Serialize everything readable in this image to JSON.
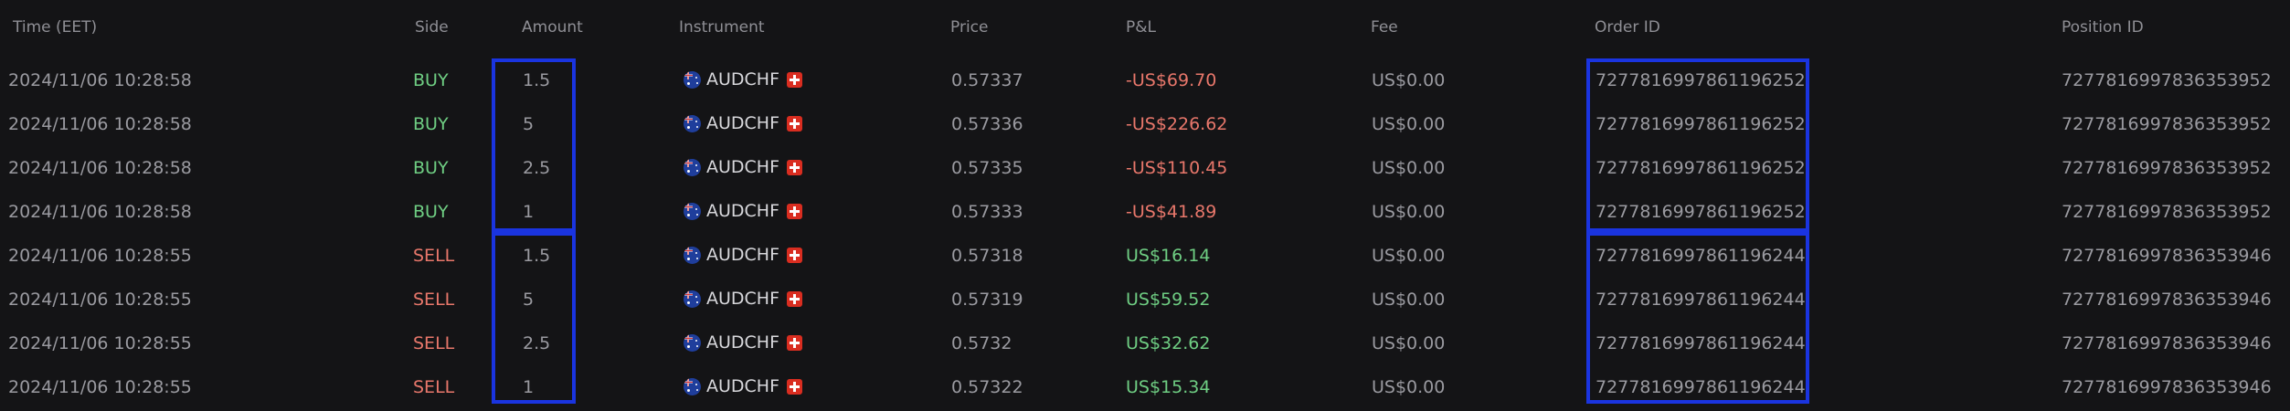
{
  "headers": {
    "time": "Time (EET)",
    "side": "Side",
    "amount": "Amount",
    "instrument": "Instrument",
    "price": "Price",
    "pnl": "P&L",
    "fee": "Fee",
    "order_id": "Order ID",
    "position_id": "Position ID"
  },
  "colors": {
    "buy": "#6fce83",
    "sell": "#e8776b",
    "pnl_negative": "#e8776b",
    "pnl_positive": "#6fce83",
    "highlight_box": "#1a34e0",
    "background": "#141416"
  },
  "rows": [
    {
      "time": "2024/11/06 10:28:58",
      "side": "BUY",
      "amount": "1.5",
      "instrument": "AUDCHF",
      "price": "0.57337",
      "pnl": "-US$69.70",
      "fee": "US$0.00",
      "order_id": "7277816997861196252",
      "position_id": "7277816997836353952"
    },
    {
      "time": "2024/11/06 10:28:58",
      "side": "BUY",
      "amount": "5",
      "instrument": "AUDCHF",
      "price": "0.57336",
      "pnl": "-US$226.62",
      "fee": "US$0.00",
      "order_id": "7277816997861196252",
      "position_id": "7277816997836353952"
    },
    {
      "time": "2024/11/06 10:28:58",
      "side": "BUY",
      "amount": "2.5",
      "instrument": "AUDCHF",
      "price": "0.57335",
      "pnl": "-US$110.45",
      "fee": "US$0.00",
      "order_id": "7277816997861196252",
      "position_id": "7277816997836353952"
    },
    {
      "time": "2024/11/06 10:28:58",
      "side": "BUY",
      "amount": "1",
      "instrument": "AUDCHF",
      "price": "0.57333",
      "pnl": "-US$41.89",
      "fee": "US$0.00",
      "order_id": "7277816997861196252",
      "position_id": "7277816997836353952"
    },
    {
      "time": "2024/11/06 10:28:55",
      "side": "SELL",
      "amount": "1.5",
      "instrument": "AUDCHF",
      "price": "0.57318",
      "pnl": "US$16.14",
      "fee": "US$0.00",
      "order_id": "7277816997861196244",
      "position_id": "7277816997836353946"
    },
    {
      "time": "2024/11/06 10:28:55",
      "side": "SELL",
      "amount": "5",
      "instrument": "AUDCHF",
      "price": "0.57319",
      "pnl": "US$59.52",
      "fee": "US$0.00",
      "order_id": "7277816997861196244",
      "position_id": "7277816997836353946"
    },
    {
      "time": "2024/11/06 10:28:55",
      "side": "SELL",
      "amount": "2.5",
      "instrument": "AUDCHF",
      "price": "0.5732",
      "pnl": "US$32.62",
      "fee": "US$0.00",
      "order_id": "7277816997861196244",
      "position_id": "7277816997836353946"
    },
    {
      "time": "2024/11/06 10:28:55",
      "side": "SELL",
      "amount": "1",
      "instrument": "AUDCHF",
      "price": "0.57322",
      "pnl": "US$15.34",
      "fee": "US$0.00",
      "order_id": "7277816997861196244",
      "position_id": "7277816997836353946"
    }
  ]
}
